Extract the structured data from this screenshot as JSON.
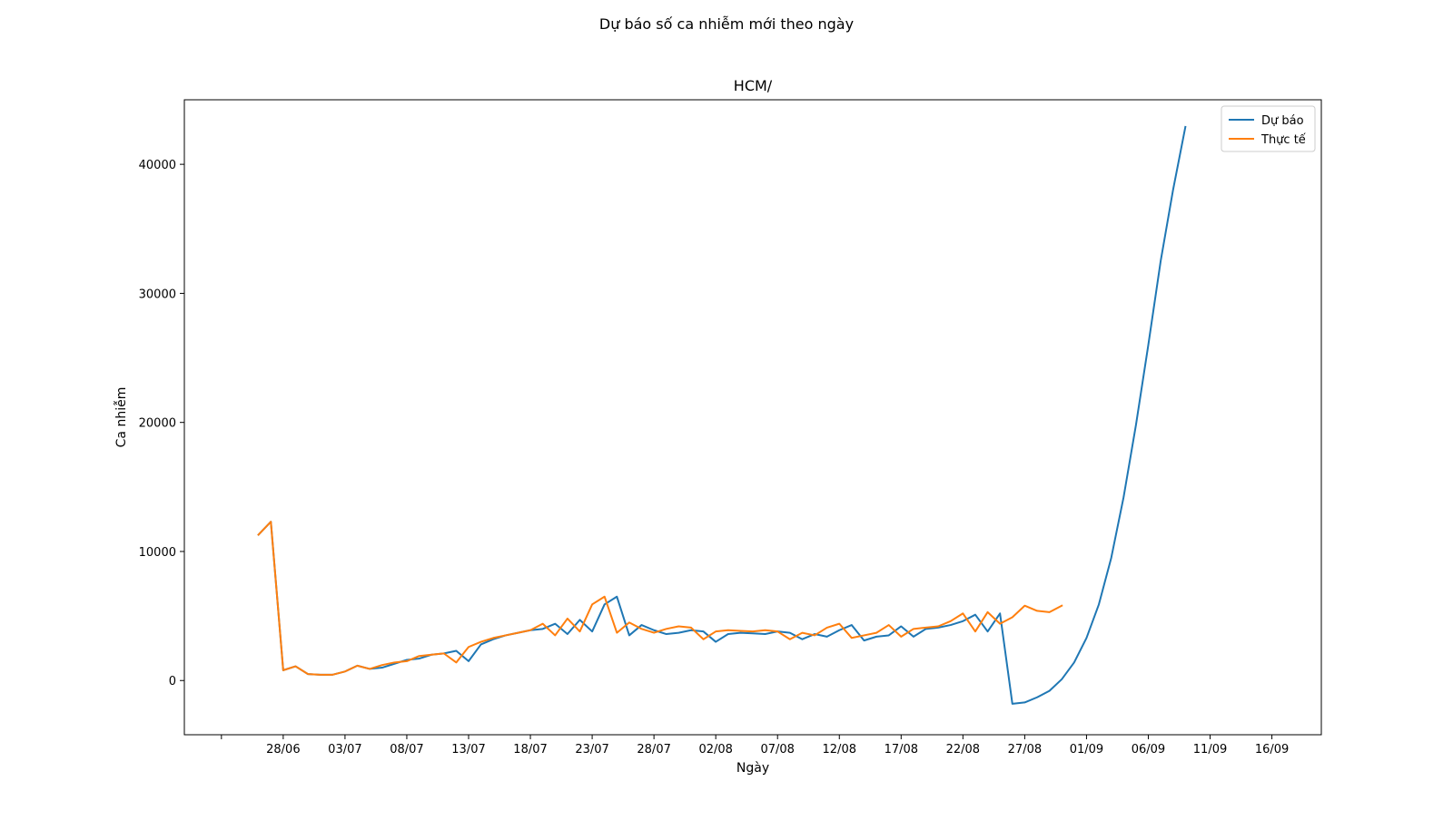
{
  "figure": {
    "suptitle": "Dự báo số ca nhiễm mới theo ngày"
  },
  "chart_data": {
    "type": "line",
    "title": "HCM/",
    "xlabel": "Ngày",
    "ylabel": "Ca nhiễm",
    "x_start_date": "2021-06-23",
    "x_unit": "day",
    "xlim": [
      "2021-06-20",
      "2021-09-20"
    ],
    "ylim": [
      -4200,
      45000
    ],
    "x_ticks": [
      {
        "date": "2021-06-23",
        "label": ""
      },
      {
        "date": "2021-06-28",
        "label": "28/06"
      },
      {
        "date": "2021-07-03",
        "label": "03/07"
      },
      {
        "date": "2021-07-08",
        "label": "08/07"
      },
      {
        "date": "2021-07-13",
        "label": "13/07"
      },
      {
        "date": "2021-07-18",
        "label": "18/07"
      },
      {
        "date": "2021-07-23",
        "label": "23/07"
      },
      {
        "date": "2021-07-28",
        "label": "28/07"
      },
      {
        "date": "2021-08-02",
        "label": "02/08"
      },
      {
        "date": "2021-08-07",
        "label": "07/08"
      },
      {
        "date": "2021-08-12",
        "label": "12/08"
      },
      {
        "date": "2021-08-17",
        "label": "17/08"
      },
      {
        "date": "2021-08-22",
        "label": "22/08"
      },
      {
        "date": "2021-08-27",
        "label": "27/08"
      },
      {
        "date": "2021-09-01",
        "label": "01/09"
      },
      {
        "date": "2021-09-06",
        "label": "06/09"
      },
      {
        "date": "2021-09-11",
        "label": "11/09"
      },
      {
        "date": "2021-09-16",
        "label": "16/09"
      }
    ],
    "y_ticks": [
      0,
      10000,
      20000,
      30000,
      40000
    ],
    "grid": false,
    "legend": "top-right",
    "series": [
      {
        "name": "Dự báo",
        "color": "#1f77b4",
        "start_date": "2021-06-26",
        "values": [
          11300,
          12300,
          800,
          1100,
          500,
          450,
          450,
          700,
          1150,
          900,
          1000,
          1300,
          1600,
          1700,
          2000,
          2100,
          2300,
          1500,
          2800,
          3200,
          3500,
          3700,
          3900,
          4000,
          4400,
          3600,
          4700,
          3800,
          5900,
          6500,
          3500,
          4300,
          3900,
          3600,
          3700,
          3900,
          3800,
          3000,
          3600,
          3700,
          3650,
          3600,
          3800,
          3700,
          3200,
          3600,
          3400,
          3900,
          4300,
          3100,
          3400,
          3500,
          4200,
          3400,
          4000,
          4100,
          4300,
          4600,
          5100,
          3800,
          5200,
          -1800,
          -1700,
          -1300,
          -800,
          100,
          1400,
          3300,
          5900,
          9500,
          14200,
          19800,
          26000,
          32500,
          38000,
          42900
        ]
      },
      {
        "name": "Thực tế",
        "color": "#ff7f0e",
        "start_date": "2021-06-26",
        "values": [
          11300,
          12300,
          800,
          1100,
          500,
          450,
          450,
          700,
          1150,
          900,
          1200,
          1400,
          1500,
          1900,
          2000,
          2100,
          1400,
          2600,
          3000,
          3300,
          3500,
          3700,
          3900,
          4400,
          3500,
          4800,
          3800,
          5900,
          6500,
          3700,
          4500,
          4000,
          3700,
          4000,
          4200,
          4100,
          3200,
          3800,
          3900,
          3850,
          3800,
          3900,
          3800,
          3200,
          3700,
          3500,
          4100,
          4400,
          3300,
          3500,
          3700,
          4300,
          3400,
          4000,
          4100,
          4200,
          4600,
          5200,
          3800,
          5300,
          4400,
          4900,
          5800,
          5400,
          5300,
          5800
        ]
      }
    ]
  }
}
